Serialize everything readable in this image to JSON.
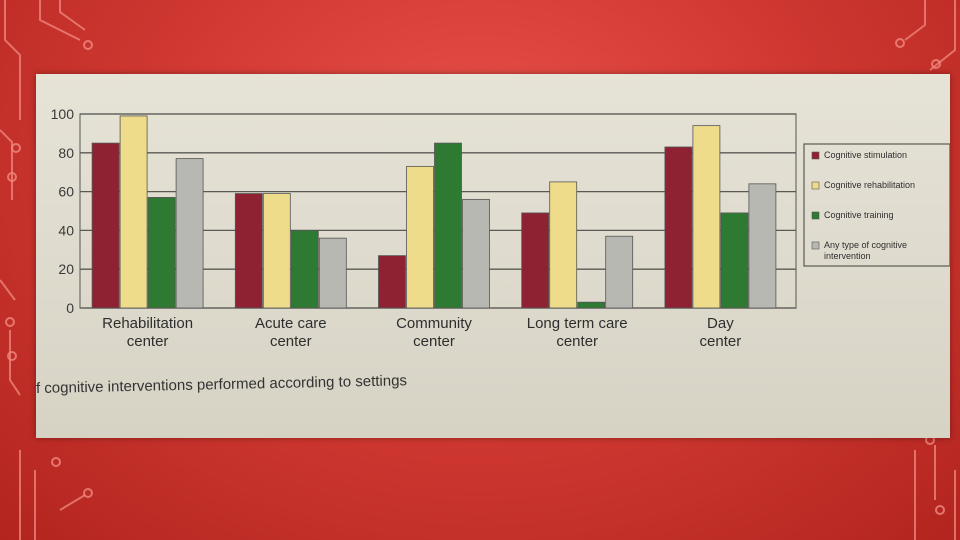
{
  "caption": "f cognitive interventions performed according to settings",
  "colors": {
    "Cognitive stimulation": "#8e2233",
    "Cognitive rehabilitation": "#eedc8a",
    "Cognitive training": "#2f7a32",
    "Any type of cognitive intervention": "#b8b8b2"
  },
  "chart_data": {
    "type": "bar",
    "categories": [
      "Rehabilitation center",
      "Acute care center",
      "Community center",
      "Long term care center",
      "Day center"
    ],
    "series": [
      {
        "name": "Cognitive stimulation",
        "values": [
          85,
          59,
          27,
          49,
          83
        ]
      },
      {
        "name": "Cognitive rehabilitation",
        "values": [
          99,
          59,
          73,
          65,
          94
        ]
      },
      {
        "name": "Cognitive training",
        "values": [
          57,
          40,
          85,
          3,
          49
        ]
      },
      {
        "name": "Any type of cognitive intervention",
        "values": [
          77,
          36,
          56,
          37,
          64
        ]
      }
    ],
    "yticks": [
      "0",
      "20",
      "40",
      "60",
      "80",
      "100"
    ],
    "ylim": [
      0,
      100
    ],
    "grid": true,
    "legend": "right"
  }
}
